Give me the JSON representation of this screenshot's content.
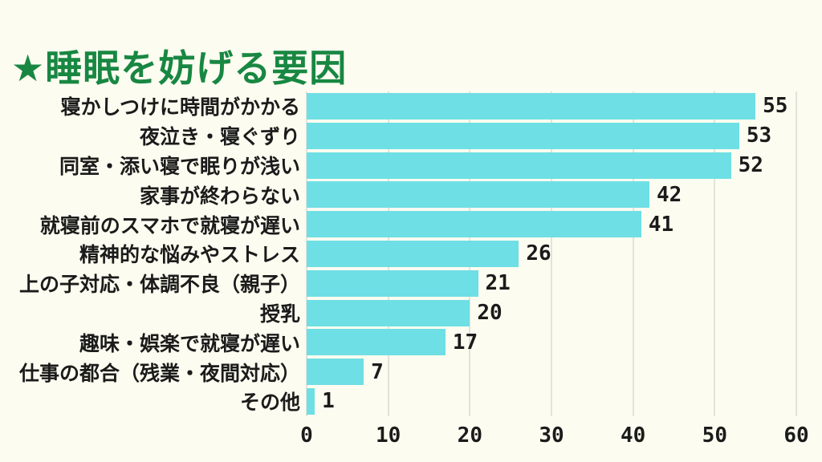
{
  "page": {
    "background_color": "#FCFCF0"
  },
  "title": {
    "text": "★睡眠を妨げる要因",
    "color": "#188742"
  },
  "chart_data": {
    "type": "bar",
    "orientation": "horizontal",
    "title": "睡眠を妨げる要因",
    "categories": [
      "寝かしつけに時間がかかる",
      "夜泣き・寝ぐずり",
      "同室・添い寝で眠りが浅い",
      "家事が終わらない",
      "就寝前のスマホで就寝が遅い",
      "精神的な悩みやストレス",
      "上の子対応・体調不良（親子）",
      "授乳",
      "趣味・娯楽で就寝が遅い",
      "仕事の都合（残業・夜間対応）",
      "その他"
    ],
    "values": [
      55,
      53,
      52,
      42,
      41,
      26,
      21,
      20,
      17,
      7,
      1
    ],
    "value_labels_shown": true,
    "xlabel": "",
    "ylabel": "",
    "xlim": [
      0,
      60
    ],
    "x_ticks": [
      0,
      10,
      20,
      30,
      40,
      50,
      60
    ],
    "grid": true,
    "legend": "none",
    "bar_color": "#6EDFE4",
    "gridline_color": "#E3E3DC",
    "text_color": "#1b1b1b"
  }
}
